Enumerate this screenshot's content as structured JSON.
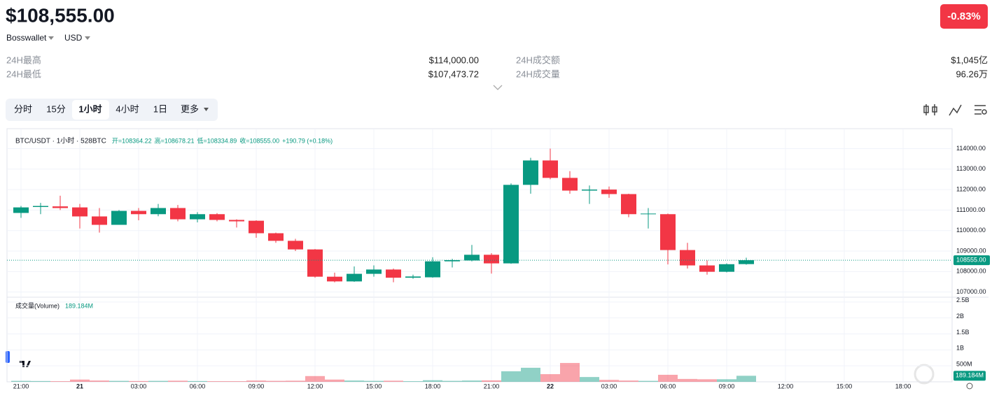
{
  "header": {
    "price": "$108,555.00",
    "wallet": "Bosswallet",
    "currency": "USD",
    "change": "-0.83%"
  },
  "stats": [
    {
      "label": "24H最高",
      "value": "$114,000.00"
    },
    {
      "label": "24H最低",
      "value": "$107,473.72"
    },
    {
      "label": "24H成交额",
      "value": "$1,045亿"
    },
    {
      "label": "24H成交量",
      "value": "96.26万"
    }
  ],
  "tabs": [
    "分时",
    "15分",
    "1小时",
    "4小时",
    "1日",
    "更多"
  ],
  "active_tab": 2,
  "chart_data": {
    "type": "candlestick",
    "title": "BTC/USDT · 1小时 · 528BTC",
    "legend_values": [
      "开=108364.22",
      "高=108678.21",
      "低=108334.89",
      "收=108555.00",
      "+190.79 (+0.18%)"
    ],
    "categories": [
      "21:00",
      null,
      null,
      "21",
      null,
      null,
      "03:00",
      null,
      null,
      "06:00",
      null,
      null,
      "09:00",
      null,
      null,
      "12:00",
      null,
      null,
      "15:00",
      null,
      null,
      "18:00",
      null,
      null,
      "21:00",
      null,
      null,
      "22",
      null,
      null,
      "03:00",
      null,
      null,
      "06:00",
      null,
      null,
      "09:00",
      null,
      null,
      "12:00",
      null,
      null,
      "15:00",
      null,
      null,
      "18:00",
      null,
      null
    ],
    "open": [
      110860,
      111150,
      111180,
      111130,
      110690,
      110280,
      110960,
      110800,
      111100,
      110550,
      110800,
      110520,
      110480,
      109870,
      109500,
      109080,
      107750,
      107520,
      107890,
      108100,
      107700,
      107720,
      108500,
      108540,
      108820,
      108400,
      112230,
      113420,
      112570,
      111950,
      112000,
      111780,
      110800,
      110800,
      109050,
      108300,
      107990,
      108364.22,
      null,
      null,
      null,
      null,
      null,
      null,
      null,
      null,
      null,
      null
    ],
    "high": [
      111200,
      111350,
      111700,
      111300,
      111100,
      111000,
      111100,
      111300,
      111250,
      110900,
      110850,
      110550,
      110500,
      109900,
      109600,
      109100,
      107950,
      108250,
      108300,
      108150,
      107850,
      108700,
      108620,
      109300,
      108900,
      112300,
      113550,
      114000,
      112900,
      112200,
      112150,
      111800,
      111100,
      110830,
      109400,
      108550,
      108400,
      108678.21,
      null,
      null,
      null,
      null,
      null,
      null,
      null,
      null,
      null,
      null
    ],
    "low": [
      110620,
      110800,
      111000,
      110100,
      109900,
      110280,
      110500,
      110700,
      110450,
      110400,
      110450,
      110150,
      109650,
      109400,
      109000,
      107700,
      107473.72,
      107500,
      107750,
      107480,
      107650,
      107700,
      108200,
      108500,
      107900,
      108380,
      111800,
      112500,
      111800,
      111300,
      111600,
      110650,
      110100,
      108350,
      108150,
      107850,
      107960,
      108334.89,
      null,
      null,
      null,
      null,
      null,
      null,
      null,
      null,
      null,
      null
    ],
    "close": [
      111130,
      111200,
      111100,
      110690,
      110280,
      110960,
      110800,
      111100,
      110550,
      110800,
      110520,
      110450,
      109870,
      109500,
      109080,
      107750,
      107520,
      107890,
      108100,
      107700,
      107760,
      108500,
      108560,
      108820,
      108400,
      112230,
      113420,
      112570,
      111950,
      112000,
      111780,
      110800,
      110830,
      109050,
      108300,
      107990,
      108360,
      108555,
      null,
      null,
      null,
      null,
      null,
      null,
      null,
      null,
      null,
      null
    ],
    "up_color": "#089981",
    "down_color": "#f23645",
    "ylim": [
      106750,
      114800
    ],
    "yticks": [
      {
        "value": 107000,
        "label": "107000.00"
      },
      {
        "value": 108000,
        "label": "108000.00"
      },
      {
        "value": 109000,
        "label": "109000.00"
      },
      {
        "value": 110000,
        "label": "110000.00"
      },
      {
        "value": 111000,
        "label": "111000.00"
      },
      {
        "value": 112000,
        "label": "112000.00"
      },
      {
        "value": 113000,
        "label": "113000.00"
      },
      {
        "value": 114000,
        "label": "114000.00"
      }
    ],
    "last_price": {
      "value": 108555,
      "label": "108555.00"
    },
    "grid": true,
    "volume": {
      "title": "成交量(Volume)",
      "values": [
        30000000,
        25000000,
        20000000,
        70000000,
        40000000,
        30000000,
        25000000,
        30000000,
        35000000,
        25000000,
        20000000,
        20000000,
        40000000,
        30000000,
        35000000,
        180000000,
        70000000,
        40000000,
        30000000,
        35000000,
        20000000,
        50000000,
        30000000,
        40000000,
        45000000,
        330000000,
        440000000,
        240000000,
        590000000,
        150000000,
        60000000,
        40000000,
        30000000,
        220000000,
        90000000,
        80000000,
        80000000,
        189184000,
        null,
        null,
        null,
        null,
        null,
        null,
        null,
        null,
        null,
        null
      ],
      "ylim": [
        0,
        2650000000
      ],
      "yticks": [
        {
          "value": 500000000,
          "label": "500M"
        },
        {
          "value": 1000000000,
          "label": "1B"
        },
        {
          "value": 1500000000,
          "label": "1.5B"
        },
        {
          "value": 2000000000,
          "label": "2B"
        },
        {
          "value": 2500000000,
          "label": "2.5B"
        }
      ],
      "last": {
        "value": 189184000,
        "label": "189.184M"
      }
    }
  }
}
